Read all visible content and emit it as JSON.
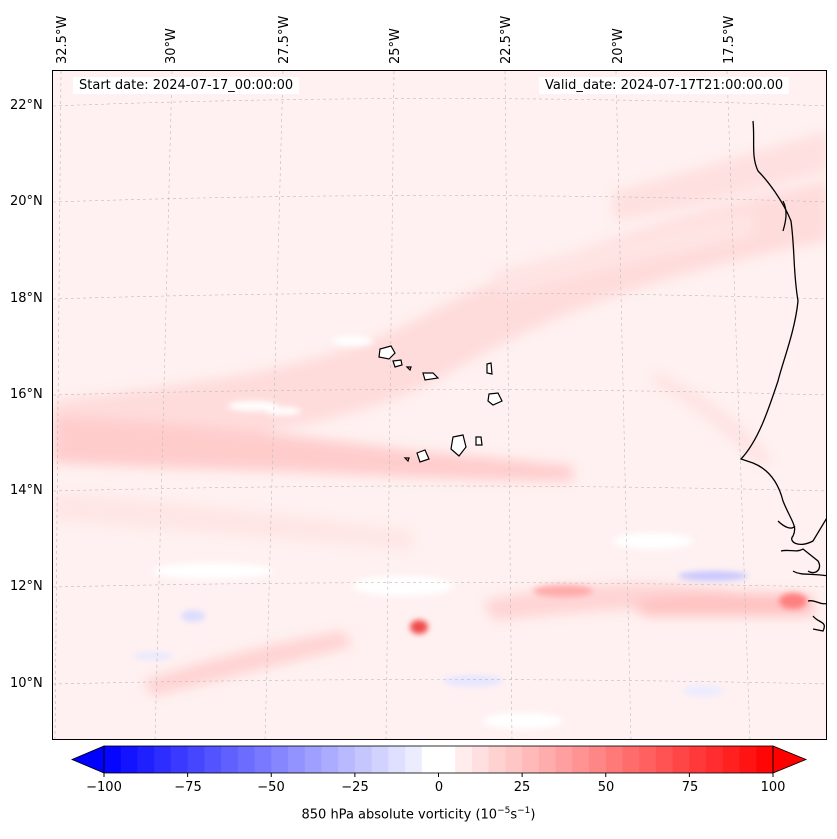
{
  "map": {
    "start_date": "Start date: 2024-07-17_00:00:00",
    "valid_date": "Valid_date: 2024-07-17T21:00:00.00",
    "longitude_labels": [
      "32.5°W",
      "30°W",
      "27.5°W",
      "25°W",
      "22.5°W",
      "20°W",
      "17.5°W"
    ],
    "latitude_labels": [
      "22°N",
      "20°N",
      "18°N",
      "16°N",
      "14°N",
      "12°N",
      "10°N"
    ],
    "colors": {
      "land_outline": "#000000",
      "positive": "#ff0000",
      "negative": "#0000ff",
      "neutral": "#ffffff"
    }
  },
  "colorbar": {
    "title_prefix": "850 hPa absolute vorticity (10",
    "title_exp1": "−5",
    "title_mid": "s",
    "title_exp2": "−1",
    "title_suffix": ")",
    "ticks": [
      "−100",
      "−75",
      "−50",
      "−25",
      "0",
      "25",
      "50",
      "75",
      "100"
    ],
    "min": -100,
    "max": 100,
    "step": 5
  }
}
